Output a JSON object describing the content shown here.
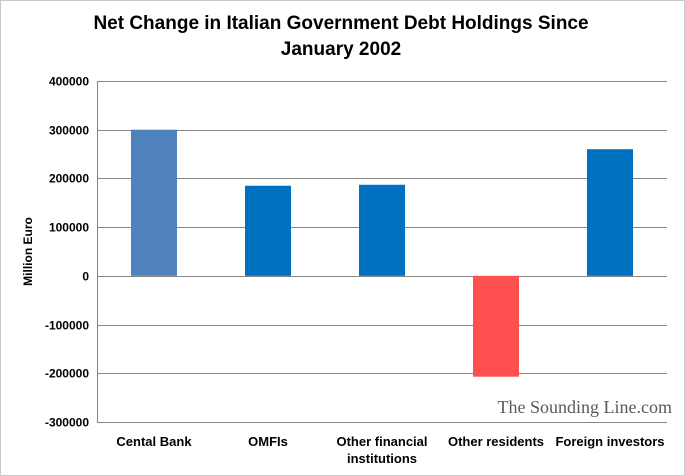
{
  "chart_data": {
    "type": "bar",
    "title": "Net Change in Italian Government Debt Holdings Since January 2002",
    "xlabel": "",
    "ylabel": "Million Euro",
    "ylim": [
      -300000,
      400000
    ],
    "yticks": [
      400000,
      300000,
      200000,
      100000,
      0,
      -100000,
      -200000,
      -300000
    ],
    "ytick_labels": [
      "400000",
      "300000",
      "200000",
      "100000",
      "0",
      "-100000",
      "-200000",
      "-300000"
    ],
    "grid": true,
    "legend": "none",
    "categories": [
      [
        "Cental Bank"
      ],
      [
        "OMFIs"
      ],
      [
        "Other financial",
        "institutions"
      ],
      [
        "Other residents"
      ],
      [
        "Foreign investors"
      ]
    ],
    "values": [
      300000,
      185000,
      187000,
      -207000,
      260000
    ],
    "bar_colors": [
      "#4f81bd",
      "#0070c0",
      "#0070c0",
      "#ff5050",
      "#0070c0"
    ]
  },
  "watermark": "The Sounding Line.com"
}
